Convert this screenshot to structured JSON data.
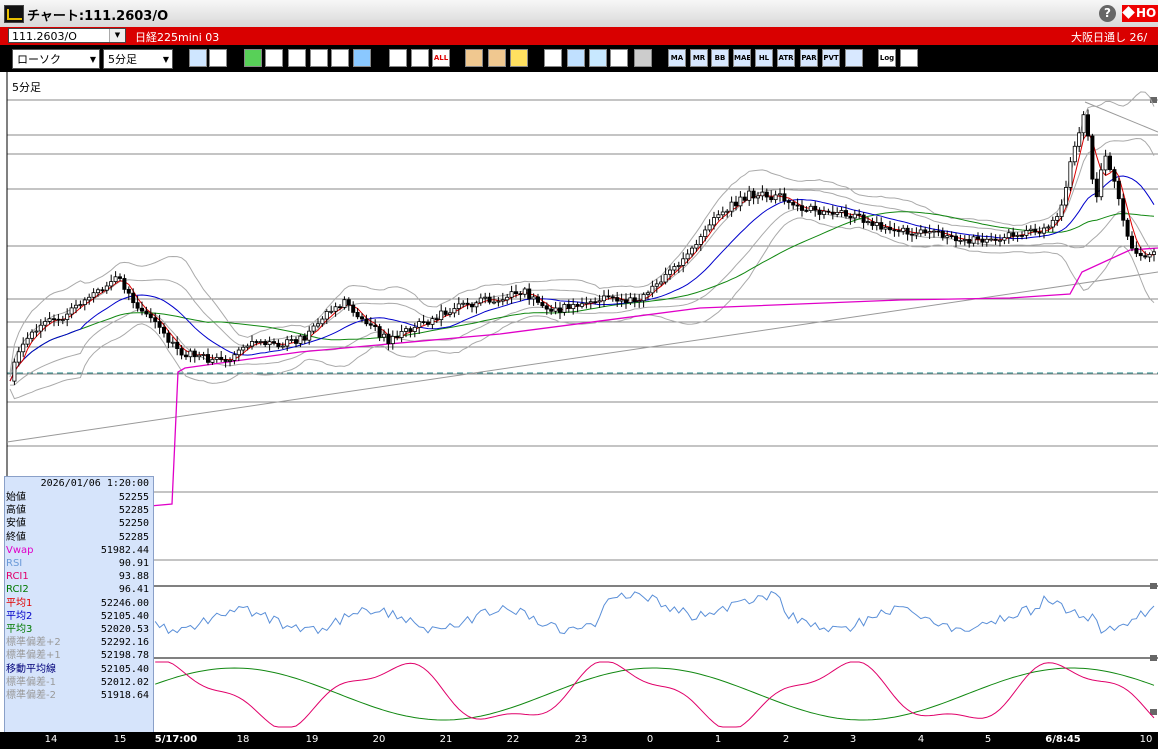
{
  "window": {
    "title": "チャート:111.2603/O",
    "help_label": "?",
    "badge_label": "HO"
  },
  "codebar": {
    "code_value": "111.2603/O",
    "name": "日経225mini 03",
    "session": "大阪日通し 26/"
  },
  "toolbar": {
    "chart_type": "ローソク",
    "timeframe": "5分足",
    "buttons": [
      "zoom",
      "bars",
      "color",
      "draw",
      "cursor",
      "undo",
      "memo",
      "trash",
      "candle-left",
      "candle-right",
      "ALL",
      "gear",
      "wrench",
      "palette",
      "cursor-down",
      "zoom-chart",
      "scale",
      "cross",
      "lock",
      "MA",
      "MR",
      "BB",
      "MAE",
      "HL",
      "ATR",
      "PAR",
      "PVT",
      "box",
      "Log",
      "export"
    ],
    "text_buttons": {
      "all": "ALL",
      "ma": "MA",
      "mr": "MR",
      "bb": "BB",
      "mae": "MAE",
      "hl": "HL",
      "atr": "ATR",
      "par": "PAR",
      "pvt": "PVT",
      "log": "Log"
    }
  },
  "chart": {
    "timeframe_label": "5分足",
    "accent_up": "#ffffff",
    "accent_down": "#000000"
  },
  "info": {
    "datetime": "2026/01/06 1:20:00",
    "rows": [
      {
        "label": "始値",
        "value": "52255",
        "color": "#000000"
      },
      {
        "label": "高値",
        "value": "52285",
        "color": "#000000"
      },
      {
        "label": "安値",
        "value": "52250",
        "color": "#000000"
      },
      {
        "label": "終値",
        "value": "52285",
        "color": "#000000"
      },
      {
        "label": "Vwap",
        "value": "51982.44",
        "color": "#e000c8"
      },
      {
        "label": "RSI",
        "value": "90.91",
        "color": "#6a9ad8"
      },
      {
        "label": "RCI1",
        "value": "93.88",
        "color": "#e0006a"
      },
      {
        "label": "RCI2",
        "value": "96.41",
        "color": "#007a00"
      },
      {
        "label": "平均1",
        "value": "52246.00",
        "color": "#e00000"
      },
      {
        "label": "平均2",
        "value": "52105.40",
        "color": "#0000c8"
      },
      {
        "label": "平均3",
        "value": "52020.53",
        "color": "#007a00"
      },
      {
        "label": "標準偏差+2",
        "value": "52292.16",
        "color": "#9a9a9a"
      },
      {
        "label": "標準偏差+1",
        "value": "52198.78",
        "color": "#9a9a9a"
      },
      {
        "label": "移動平均線",
        "value": "52105.40",
        "color": "#00007a"
      },
      {
        "label": "標準偏差-1",
        "value": "52012.02",
        "color": "#9a9a9a"
      },
      {
        "label": "標準偏差-2",
        "value": "51918.64",
        "color": "#9a9a9a"
      }
    ]
  },
  "xaxis": [
    {
      "label": "14",
      "bold": false
    },
    {
      "label": "15",
      "bold": false
    },
    {
      "label": "5/17:00",
      "bold": true
    },
    {
      "label": "18",
      "bold": false
    },
    {
      "label": "19",
      "bold": false
    },
    {
      "label": "20",
      "bold": false
    },
    {
      "label": "21",
      "bold": false
    },
    {
      "label": "22",
      "bold": false
    },
    {
      "label": "23",
      "bold": false
    },
    {
      "label": "0",
      "bold": false
    },
    {
      "label": "1",
      "bold": false
    },
    {
      "label": "2",
      "bold": false
    },
    {
      "label": "3",
      "bold": false
    },
    {
      "label": "4",
      "bold": false
    },
    {
      "label": "5",
      "bold": false
    },
    {
      "label": "6/8:45",
      "bold": true
    },
    {
      "label": "10",
      "bold": false
    }
  ]
}
